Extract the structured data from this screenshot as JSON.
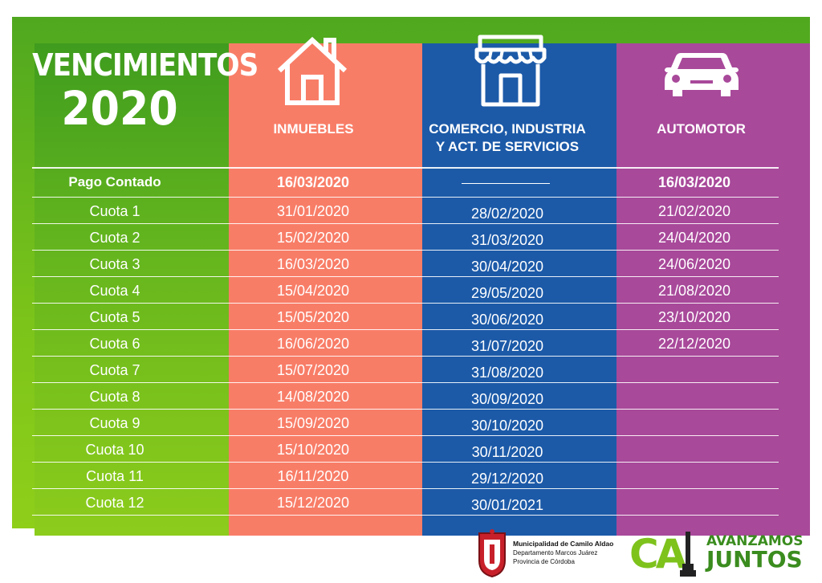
{
  "title": {
    "line1": "VENCIMIENTOS",
    "line2": "2020"
  },
  "columns": [
    {
      "label": "INMUEBLES",
      "icon": "house-icon"
    },
    {
      "label_line1": "COMERCIO, INDUSTRIA",
      "label_line2": "Y ACT. DE SERVICIOS",
      "icon": "store-icon"
    },
    {
      "label": "AUTOMOTOR",
      "icon": "car-icon"
    }
  ],
  "contado": {
    "label": "Pago Contado",
    "inmuebles": "16/03/2020",
    "automotor": "16/03/2020"
  },
  "rows": [
    {
      "label": "Cuota 1",
      "inmuebles": "31/01/2020",
      "comercio": "28/02/2020",
      "automotor": "21/02/2020"
    },
    {
      "label": "Cuota 2",
      "inmuebles": "15/02/2020",
      "comercio": "31/03/2020",
      "automotor": "24/04/2020"
    },
    {
      "label": "Cuota 3",
      "inmuebles": "16/03/2020",
      "comercio": "30/04/2020",
      "automotor": "24/06/2020"
    },
    {
      "label": "Cuota 4",
      "inmuebles": "15/04/2020",
      "comercio": "29/05/2020",
      "automotor": "21/08/2020"
    },
    {
      "label": "Cuota 5",
      "inmuebles": "15/05/2020",
      "comercio": "30/06/2020",
      "automotor": "23/10/2020"
    },
    {
      "label": "Cuota 6",
      "inmuebles": "16/06/2020",
      "comercio": "31/07/2020",
      "automotor": "22/12/2020"
    },
    {
      "label": "Cuota 7",
      "inmuebles": "15/07/2020",
      "comercio": "31/08/2020",
      "automotor": ""
    },
    {
      "label": "Cuota 8",
      "inmuebles": "14/08/2020",
      "comercio": "30/09/2020",
      "automotor": ""
    },
    {
      "label": "Cuota 9",
      "inmuebles": "15/09/2020",
      "comercio": "30/10/2020",
      "automotor": ""
    },
    {
      "label": "Cuota 10",
      "inmuebles": "15/10/2020",
      "comercio": "30/11/2020",
      "automotor": ""
    },
    {
      "label": "Cuota 11",
      "inmuebles": "16/11/2020",
      "comercio": "29/12/2020",
      "automotor": ""
    },
    {
      "label": "Cuota 12",
      "inmuebles": "15/12/2020",
      "comercio": "30/01/2021",
      "automotor": ""
    }
  ],
  "footer": {
    "muni_name": "Municipalidad de Camilo Aldao",
    "muni_dept": "Departamento Marcos Juárez",
    "muni_prov": "Provincia de Córdoba",
    "ca_logo": "CA",
    "slogan1": "AVANZAMOS",
    "slogan2": "JUNTOS"
  },
  "colors": {
    "green": "#5fb21e",
    "salmon": "#f87d67",
    "blue": "#1c5aa8",
    "purple": "#a8499a"
  }
}
